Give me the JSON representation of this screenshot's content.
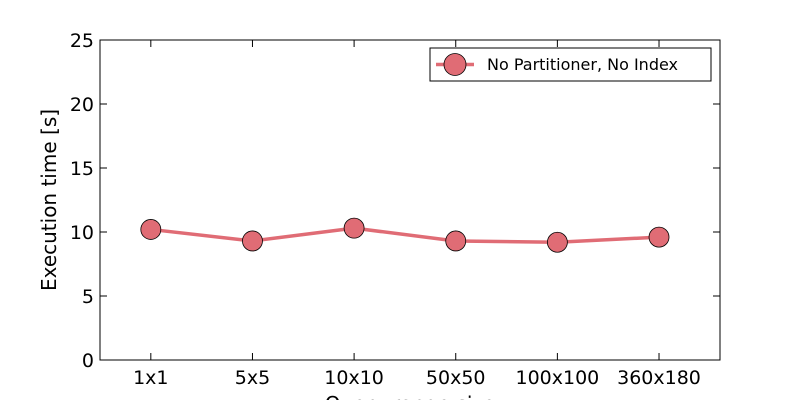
{
  "chart_data": {
    "type": "line",
    "title": "",
    "xlabel": "Query range size",
    "ylabel": "Execution time [s]",
    "categories": [
      "1x1",
      "5x5",
      "10x10",
      "50x50",
      "100x100",
      "360x180"
    ],
    "yticks": [
      "0",
      "5",
      "10",
      "15",
      "20",
      "25"
    ],
    "ylim": [
      0,
      25
    ],
    "grid": false,
    "legend_position": "top-right",
    "series": [
      {
        "name": "No Partitioner, No Index",
        "color": "#E06C75",
        "values": [
          10.2,
          9.3,
          10.3,
          9.3,
          9.2,
          9.6
        ]
      }
    ]
  }
}
